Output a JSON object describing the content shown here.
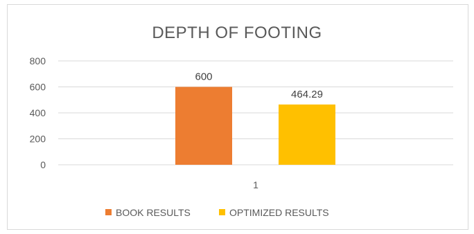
{
  "chart_data": {
    "type": "bar",
    "title": "DEPTH OF FOOTING",
    "categories": [
      "1"
    ],
    "series": [
      {
        "name": "BOOK RESULTS",
        "values": [
          600
        ],
        "color": "#ed7d31",
        "label": "600"
      },
      {
        "name": "OPTIMIZED RESULTS",
        "values": [
          464.29
        ],
        "color": "#ffc000",
        "label": "464.29"
      }
    ],
    "ylim": [
      0,
      800
    ],
    "yticks": [
      0,
      200,
      400,
      600,
      800
    ],
    "grid": true,
    "legend": "bottom"
  }
}
